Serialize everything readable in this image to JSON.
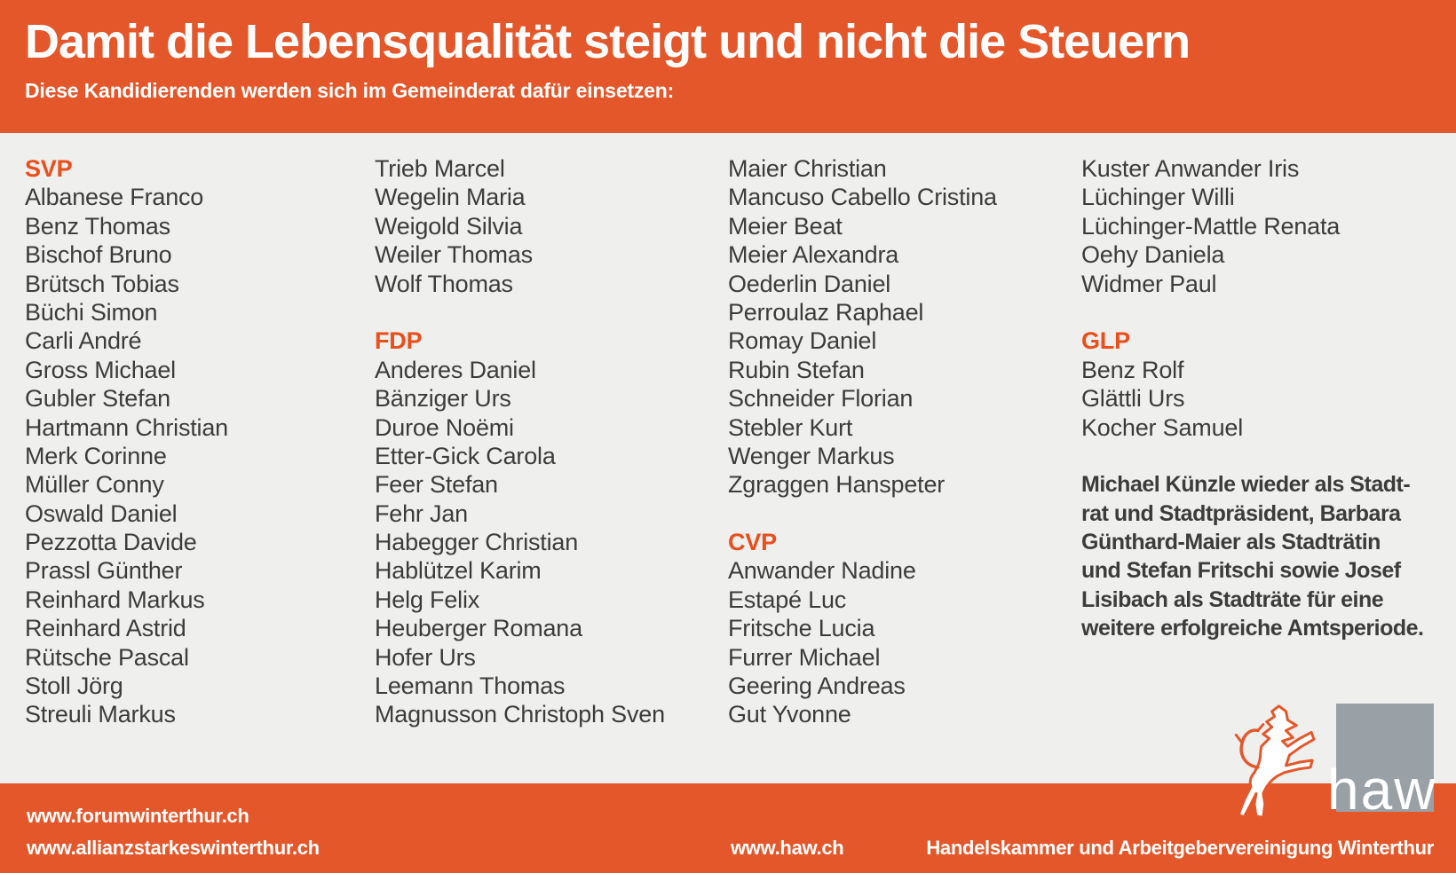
{
  "header": {
    "title": "Damit die Lebensqualität steigt und nicht die Steuern",
    "subtitle": "Diese Kandidierenden werden sich im Gemeinderat dafür einsetzen:"
  },
  "colors": {
    "orange": "#E4572A",
    "party_label_orange": "#E94E1B",
    "body_background": "#EFEFED",
    "name_text": "#3C3C3C",
    "logo_gray": "#99A1A7"
  },
  "columns": [
    {
      "rows": [
        {
          "type": "label",
          "text": "SVP"
        },
        {
          "type": "name",
          "text": "Albanese Franco"
        },
        {
          "type": "name",
          "text": "Benz Thomas"
        },
        {
          "type": "name",
          "text": "Bischof Bruno"
        },
        {
          "type": "name",
          "text": "Brütsch Tobias"
        },
        {
          "type": "name",
          "text": "Büchi Simon"
        },
        {
          "type": "name",
          "text": "Carli André"
        },
        {
          "type": "name",
          "text": "Gross Michael"
        },
        {
          "type": "name",
          "text": "Gubler Stefan"
        },
        {
          "type": "name",
          "text": "Hartmann Christian"
        },
        {
          "type": "name",
          "text": "Merk Corinne"
        },
        {
          "type": "name",
          "text": "Müller Conny"
        },
        {
          "type": "name",
          "text": "Oswald Daniel"
        },
        {
          "type": "name",
          "text": "Pezzotta Davide"
        },
        {
          "type": "name",
          "text": "Prassl Günther"
        },
        {
          "type": "name",
          "text": "Reinhard Markus"
        },
        {
          "type": "name",
          "text": "Reinhard Astrid"
        },
        {
          "type": "name",
          "text": "Rütsche Pascal"
        },
        {
          "type": "name",
          "text": "Stoll Jörg"
        },
        {
          "type": "name",
          "text": "Streuli Markus"
        }
      ]
    },
    {
      "rows": [
        {
          "type": "name",
          "text": "Trieb Marcel"
        },
        {
          "type": "name",
          "text": "Wegelin Maria"
        },
        {
          "type": "name",
          "text": "Weigold Silvia"
        },
        {
          "type": "name",
          "text": "Weiler Thomas"
        },
        {
          "type": "name",
          "text": "Wolf Thomas"
        },
        {
          "type": "blank",
          "text": ""
        },
        {
          "type": "label",
          "text": "FDP"
        },
        {
          "type": "name",
          "text": "Anderes Daniel"
        },
        {
          "type": "name",
          "text": "Bänziger Urs"
        },
        {
          "type": "name",
          "text": "Duroe Noëmi"
        },
        {
          "type": "name",
          "text": "Etter-Gick Carola"
        },
        {
          "type": "name",
          "text": "Feer Stefan"
        },
        {
          "type": "name",
          "text": "Fehr Jan"
        },
        {
          "type": "name",
          "text": "Habegger Christian"
        },
        {
          "type": "name",
          "text": "Hablützel Karim"
        },
        {
          "type": "name",
          "text": "Helg Felix"
        },
        {
          "type": "name",
          "text": "Heuberger Romana"
        },
        {
          "type": "name",
          "text": "Hofer Urs"
        },
        {
          "type": "name",
          "text": "Leemann Thomas"
        },
        {
          "type": "name",
          "text": "Magnusson Christoph Sven"
        }
      ]
    },
    {
      "rows": [
        {
          "type": "name",
          "text": "Maier Christian"
        },
        {
          "type": "name",
          "text": "Mancuso Cabello Cristina"
        },
        {
          "type": "name",
          "text": "Meier Beat"
        },
        {
          "type": "name",
          "text": "Meier Alexandra"
        },
        {
          "type": "name",
          "text": "Oederlin Daniel"
        },
        {
          "type": "name",
          "text": "Perroulaz Raphael"
        },
        {
          "type": "name",
          "text": "Romay Daniel"
        },
        {
          "type": "name",
          "text": "Rubin Stefan"
        },
        {
          "type": "name",
          "text": "Schneider Florian"
        },
        {
          "type": "name",
          "text": "Stebler Kurt"
        },
        {
          "type": "name",
          "text": "Wenger Markus"
        },
        {
          "type": "name",
          "text": "Zgraggen Hanspeter"
        },
        {
          "type": "blank",
          "text": ""
        },
        {
          "type": "label",
          "text": "CVP"
        },
        {
          "type": "name",
          "text": "Anwander Nadine"
        },
        {
          "type": "name",
          "text": "Estapé Luc"
        },
        {
          "type": "name",
          "text": "Fritsche Lucia"
        },
        {
          "type": "name",
          "text": "Furrer Michael"
        },
        {
          "type": "name",
          "text": "Geering Andreas"
        },
        {
          "type": "name",
          "text": "Gut Yvonne"
        }
      ]
    },
    {
      "rows": [
        {
          "type": "name",
          "text": "Kuster Anwander Iris"
        },
        {
          "type": "name",
          "text": "Lüchinger Willi"
        },
        {
          "type": "name",
          "text": "Lüchinger-Mattle Renata"
        },
        {
          "type": "name",
          "text": "Oehy Daniela"
        },
        {
          "type": "name",
          "text": "Widmer Paul"
        },
        {
          "type": "blank",
          "text": ""
        },
        {
          "type": "label",
          "text": "GLP"
        },
        {
          "type": "name",
          "text": "Benz Rolf"
        },
        {
          "type": "name",
          "text": "Glättli Urs"
        },
        {
          "type": "name",
          "text": "Kocher Samuel"
        },
        {
          "type": "blank",
          "text": ""
        },
        {
          "type": "info",
          "text": "Michael Künzle wieder als Stadt-"
        },
        {
          "type": "info",
          "text": "rat und Stadtpräsident, Barbara"
        },
        {
          "type": "info",
          "text": "Günthard-Maier als Stadträtin"
        },
        {
          "type": "info",
          "text": "und Stefan Fritschi sowie Josef"
        },
        {
          "type": "info",
          "text": "Lisibach als Stadträte für eine"
        },
        {
          "type": "info",
          "text": "weitere erfolgreiche Amtsperiode."
        }
      ]
    }
  ],
  "footer": {
    "url_forum": "www.forumwinterthur.ch",
    "url_allianz": "www.allianzstarkeswinterthur.ch",
    "url_haw": "www.haw.ch",
    "organization": "Handelskammer und Arbeitgebervereinigung Winterthur"
  },
  "logo": {
    "text": "haw",
    "lion_icon": "rampant-lion-icon"
  }
}
